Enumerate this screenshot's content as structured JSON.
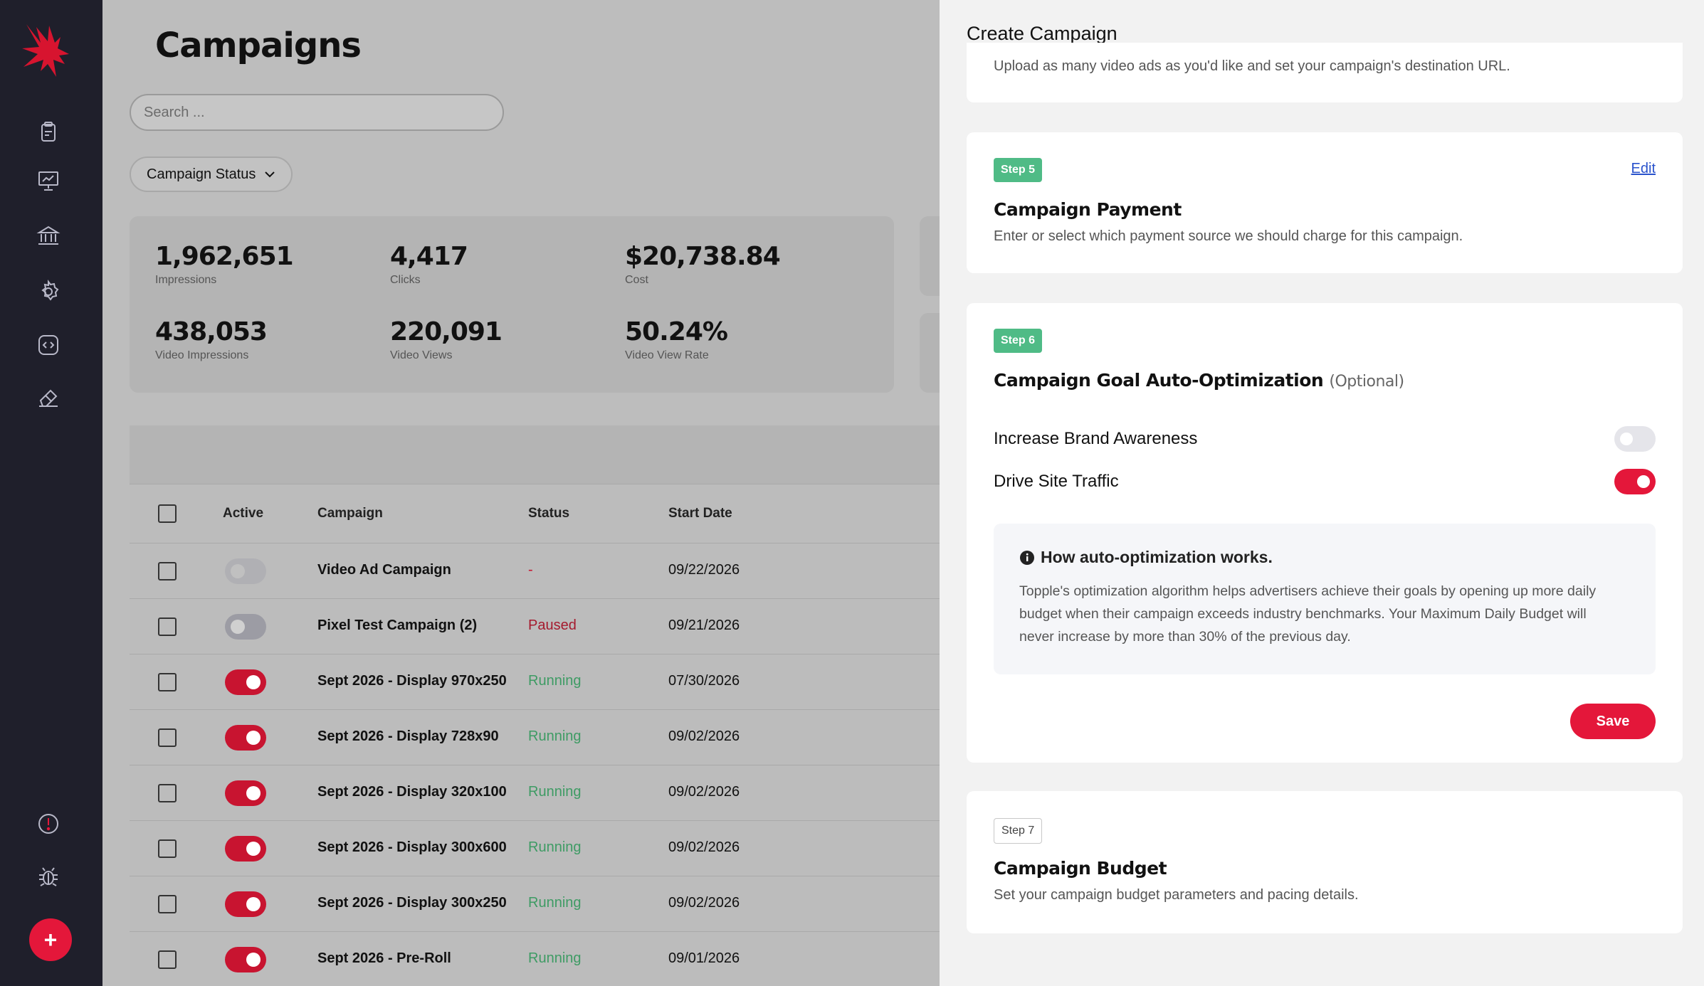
{
  "main": {
    "title": "Campaigns",
    "search_placeholder": "Search ...",
    "status_filter_label": "Campaign Status",
    "stats": [
      {
        "value": "1,962,651",
        "label": "Impressions"
      },
      {
        "value": "4,417",
        "label": "Clicks"
      },
      {
        "value": "$20,738.84",
        "label": "Cost"
      },
      {
        "value": "438,053",
        "label": "Video Impressions"
      },
      {
        "value": "220,091",
        "label": "Video Views"
      },
      {
        "value": "50.24%",
        "label": "Video View Rate"
      }
    ],
    "table": {
      "columns": [
        "Active",
        "Campaign",
        "Status",
        "Start Date"
      ],
      "rows": [
        {
          "toggle": "disabled",
          "name": "Video Ad Campaign",
          "status": "-",
          "status_type": "none",
          "start": "09/22/2026"
        },
        {
          "toggle": "off",
          "name": "Pixel Test Campaign (2)",
          "status": "Paused",
          "status_type": "paused",
          "start": "09/21/2026"
        },
        {
          "toggle": "on",
          "name": "Sept 2026 - Display 970x250",
          "status": "Running",
          "status_type": "running",
          "start": "07/30/2026"
        },
        {
          "toggle": "on",
          "name": "Sept 2026 - Display 728x90",
          "status": "Running",
          "status_type": "running",
          "start": "09/02/2026"
        },
        {
          "toggle": "on",
          "name": "Sept 2026 - Display 320x100",
          "status": "Running",
          "status_type": "running",
          "start": "09/02/2026"
        },
        {
          "toggle": "on",
          "name": "Sept 2026 - Display 300x600",
          "status": "Running",
          "status_type": "running",
          "start": "09/02/2026"
        },
        {
          "toggle": "on",
          "name": "Sept 2026 - Display 300x250",
          "status": "Running",
          "status_type": "running",
          "start": "09/02/2026"
        },
        {
          "toggle": "on",
          "name": "Sept 2026 - Pre-Roll",
          "status": "Running",
          "status_type": "running",
          "start": "09/01/2026"
        }
      ]
    }
  },
  "sidebar": {
    "icons": [
      "clipboard-icon",
      "presentation-chart-icon",
      "bank-icon",
      "settings-gear-icon",
      "code-icon",
      "eraser-icon",
      "alert-icon",
      "bug-icon"
    ],
    "add_label": "+"
  },
  "panel": {
    "title": "Create Campaign",
    "step4_desc": "Upload as many video ads as you'd like and set your campaign's destination URL.",
    "step5": {
      "badge": "Step 5",
      "title": "Campaign Payment",
      "desc": "Enter or select which payment source we should charge for this campaign.",
      "edit": "Edit"
    },
    "step6": {
      "badge": "Step 6",
      "title": "Campaign Goal Auto-Optimization",
      "optional": "(Optional)",
      "options": [
        {
          "label": "Increase Brand Awareness",
          "enabled": false
        },
        {
          "label": "Drive Site Traffic",
          "enabled": true
        }
      ],
      "info_title": "How auto-optimization works.",
      "info_text": "Topple's optimization algorithm helps advertisers achieve their goals by opening up more daily budget when their campaign exceeds industry benchmarks. Your Maximum Daily Budget will never increase by more than 30% of the previous day.",
      "save": "Save"
    },
    "step7": {
      "badge": "Step 7",
      "title": "Campaign Budget",
      "desc": "Set your campaign budget parameters and pacing details."
    }
  },
  "colors": {
    "accent": "#e4173a",
    "sidebar": "#1f1f2b",
    "running": "#3e9b64",
    "step_badge": "#4fbb86"
  }
}
